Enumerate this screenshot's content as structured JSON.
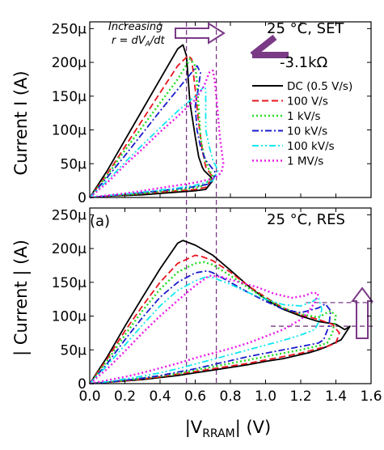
{
  "figure": {
    "panel_label": "(a)",
    "xlabel_pre": "|V",
    "xlabel_sub": "RRAM",
    "xlabel_post": "| (V)",
    "top_ylabel": "Current I (A)",
    "bottom_ylabel": "| Current | (A)",
    "top_condition": "25 °C, SET",
    "bottom_condition": "25 °C, RES",
    "arrow_line1": "Increasing",
    "arrow_line2": "r = dV",
    "arrow_line2_sub": "A",
    "arrow_line2_tail": "/dt",
    "slope_label": "-3.1kΩ"
  },
  "colors": {
    "DC (0.5 V/s)": "#000000",
    "100 V/s": "#e8141e",
    "1 kV/s": "#22dd22",
    "10 kV/s": "#1a1acc",
    "100 kV/s": "#10e8ee",
    "1 MV/s": "#e81ae8",
    "guide": "#7a3a86"
  },
  "chart_data": [
    {
      "type": "line",
      "panel": "top",
      "xlim": [
        0.0,
        1.6
      ],
      "ylim": [
        0,
        260
      ],
      "x_ticks": [
        "0.0",
        "0.2",
        "0.4",
        "0.6",
        "0.8",
        "1.0",
        "1.2",
        "1.4",
        "1.6"
      ],
      "y_ticks": [
        "0",
        "50μ",
        "100μ",
        "150μ",
        "200μ",
        "250μ"
      ],
      "ylabel": "Current I (A)",
      "annotation": "25 °C, SET",
      "series": [
        {
          "name": "DC (0.5 V/s)",
          "style": "solid",
          "x": [
            0.0,
            0.1,
            0.2,
            0.3,
            0.4,
            0.5,
            0.53,
            0.55,
            0.57,
            0.6,
            0.62,
            0.64,
            0.65,
            0.67,
            0.69,
            0.7,
            0.66,
            0.6,
            0.5,
            0.4,
            0.3,
            0.2,
            0.1,
            0.0
          ],
          "y": [
            0,
            40,
            85,
            130,
            175,
            220,
            226,
            210,
            140,
            90,
            60,
            45,
            40,
            35,
            30,
            25,
            12,
            10,
            8,
            6,
            4,
            3,
            2,
            0
          ]
        },
        {
          "name": "100 V/s",
          "style": "dashed",
          "x": [
            0.0,
            0.1,
            0.2,
            0.3,
            0.4,
            0.5,
            0.56,
            0.58,
            0.6,
            0.62,
            0.64,
            0.66,
            0.7,
            0.66,
            0.6,
            0.5,
            0.4,
            0.3,
            0.2,
            0.1,
            0.0
          ],
          "y": [
            0,
            35,
            75,
            115,
            155,
            195,
            210,
            205,
            160,
            110,
            70,
            45,
            30,
            15,
            12,
            10,
            8,
            6,
            4,
            2,
            0
          ]
        },
        {
          "name": "1 kV/s",
          "style": "dotted",
          "x": [
            0.0,
            0.1,
            0.2,
            0.3,
            0.4,
            0.5,
            0.57,
            0.6,
            0.61,
            0.62,
            0.63,
            0.65,
            0.68,
            0.7,
            0.65,
            0.6,
            0.5,
            0.4,
            0.3,
            0.2,
            0.1,
            0.0
          ],
          "y": [
            0,
            33,
            70,
            105,
            140,
            175,
            205,
            195,
            170,
            130,
            90,
            60,
            40,
            32,
            18,
            14,
            11,
            9,
            6,
            4,
            2,
            0
          ]
        },
        {
          "name": "10 kV/s",
          "style": "dashdot",
          "x": [
            0.0,
            0.1,
            0.2,
            0.3,
            0.4,
            0.5,
            0.58,
            0.61,
            0.63,
            0.62,
            0.6,
            0.61,
            0.63,
            0.66,
            0.7,
            0.72,
            0.68,
            0.6,
            0.5,
            0.4,
            0.3,
            0.2,
            0.1,
            0.0
          ],
          "y": [
            0,
            30,
            62,
            95,
            128,
            160,
            185,
            195,
            185,
            165,
            135,
            100,
            75,
            55,
            42,
            35,
            20,
            16,
            13,
            10,
            7,
            5,
            2,
            0
          ]
        },
        {
          "name": "100 kV/s",
          "style": "dashdotdot",
          "x": [
            0.0,
            0.1,
            0.2,
            0.3,
            0.4,
            0.5,
            0.6,
            0.63,
            0.65,
            0.66,
            0.66,
            0.66,
            0.68,
            0.7,
            0.72,
            0.73,
            0.7,
            0.6,
            0.5,
            0.4,
            0.3,
            0.2,
            0.1,
            0.0
          ],
          "y": [
            0,
            25,
            52,
            78,
            103,
            128,
            150,
            158,
            165,
            160,
            135,
            100,
            75,
            55,
            45,
            40,
            25,
            18,
            14,
            11,
            8,
            5,
            3,
            0
          ]
        },
        {
          "name": "1 MV/s",
          "style": "dotted",
          "x": [
            0.0,
            0.1,
            0.2,
            0.3,
            0.4,
            0.5,
            0.6,
            0.65,
            0.68,
            0.7,
            0.71,
            0.72,
            0.73,
            0.74,
            0.75,
            0.76,
            0.75,
            0.73,
            0.7,
            0.65,
            0.6,
            0.5,
            0.4,
            0.3,
            0.2,
            0.1,
            0.0
          ],
          "y": [
            0,
            22,
            48,
            72,
            97,
            120,
            145,
            165,
            185,
            188,
            175,
            150,
            120,
            90,
            70,
            50,
            38,
            32,
            28,
            25,
            22,
            18,
            14,
            10,
            6,
            3,
            0
          ]
        }
      ]
    },
    {
      "type": "line",
      "panel": "bottom",
      "xlim": [
        0.0,
        1.6
      ],
      "ylim": [
        0,
        260
      ],
      "x_ticks": [
        "0.0",
        "0.2",
        "0.4",
        "0.6",
        "0.8",
        "1.0",
        "1.2",
        "1.4",
        "1.6"
      ],
      "y_ticks": [
        "0",
        "50μ",
        "100μ",
        "150μ",
        "200μ",
        "250μ"
      ],
      "ylabel": "| Current | (A)",
      "xlabel": "|VRRAM| (V)",
      "annotation": "25 °C, RES",
      "series": [
        {
          "name": "DC (0.5 V/s)",
          "style": "solid",
          "x": [
            0.0,
            0.1,
            0.2,
            0.3,
            0.4,
            0.5,
            0.53,
            0.6,
            0.7,
            0.8,
            0.9,
            1.0,
            1.1,
            1.2,
            1.3,
            1.4,
            1.45,
            1.48,
            1.43,
            1.35,
            1.3,
            1.25,
            1.2,
            1.1,
            1.0,
            0.9,
            0.8,
            0.7,
            0.6,
            0.5,
            0.4,
            0.3,
            0.2,
            0.1,
            0.0
          ],
          "y": [
            0,
            40,
            85,
            128,
            170,
            208,
            212,
            205,
            190,
            168,
            145,
            125,
            110,
            100,
            92,
            88,
            80,
            85,
            65,
            55,
            50,
            46,
            43,
            37,
            33,
            28,
            24,
            20,
            16,
            12,
            9,
            6,
            4,
            2,
            0
          ]
        },
        {
          "name": "100 V/s",
          "style": "dashed",
          "x": [
            0.0,
            0.1,
            0.2,
            0.3,
            0.4,
            0.5,
            0.6,
            0.64,
            0.7,
            0.8,
            0.9,
            1.0,
            1.1,
            1.2,
            1.3,
            1.38,
            1.42,
            1.4,
            1.35,
            1.3,
            1.2,
            1.1,
            1.0,
            0.9,
            0.8,
            0.7,
            0.6,
            0.5,
            0.4,
            0.3,
            0.2,
            0.1,
            0.0
          ],
          "y": [
            0,
            37,
            78,
            115,
            150,
            178,
            190,
            188,
            182,
            165,
            145,
            128,
            112,
            102,
            95,
            88,
            75,
            60,
            55,
            52,
            45,
            40,
            35,
            30,
            26,
            22,
            18,
            14,
            10,
            7,
            4,
            2,
            0
          ]
        },
        {
          "name": "1 kV/s",
          "style": "dotted",
          "x": [
            0.0,
            0.1,
            0.2,
            0.3,
            0.4,
            0.5,
            0.6,
            0.65,
            0.7,
            0.8,
            0.9,
            1.0,
            1.1,
            1.2,
            1.3,
            1.37,
            1.4,
            1.38,
            1.35,
            1.3,
            1.2,
            1.1,
            1.0,
            0.9,
            0.8,
            0.7,
            0.6,
            0.5,
            0.4,
            0.3,
            0.2,
            0.1,
            0.0
          ],
          "y": [
            0,
            34,
            72,
            108,
            140,
            165,
            178,
            180,
            176,
            160,
            142,
            126,
            112,
            103,
            98,
            108,
            100,
            75,
            60,
            56,
            50,
            45,
            40,
            35,
            30,
            25,
            20,
            15,
            11,
            8,
            5,
            2,
            0
          ]
        },
        {
          "name": "10 kV/s",
          "style": "dashdot",
          "x": [
            0.0,
            0.1,
            0.2,
            0.3,
            0.4,
            0.5,
            0.6,
            0.67,
            0.7,
            0.8,
            0.9,
            1.0,
            1.1,
            1.2,
            1.3,
            1.34,
            1.37,
            1.36,
            1.33,
            1.3,
            1.2,
            1.1,
            1.0,
            0.9,
            0.8,
            0.7,
            0.6,
            0.5,
            0.4,
            0.3,
            0.2,
            0.1,
            0.0
          ],
          "y": [
            0,
            30,
            65,
            98,
            128,
            150,
            164,
            167,
            164,
            150,
            135,
            122,
            110,
            105,
            112,
            118,
            108,
            85,
            65,
            60,
            55,
            50,
            45,
            40,
            34,
            28,
            22,
            17,
            12,
            8,
            5,
            2,
            0
          ]
        },
        {
          "name": "100 kV/s",
          "style": "dashdotdot",
          "x": [
            0.0,
            0.1,
            0.2,
            0.3,
            0.4,
            0.5,
            0.6,
            0.66,
            0.7,
            0.8,
            0.9,
            1.0,
            1.1,
            1.2,
            1.27,
            1.3,
            1.32,
            1.3,
            1.28,
            1.2,
            1.1,
            1.0,
            0.9,
            0.8,
            0.7,
            0.6,
            0.5,
            0.4,
            0.3,
            0.2,
            0.1,
            0.0
          ],
          "y": [
            0,
            27,
            57,
            87,
            115,
            138,
            152,
            158,
            157,
            147,
            135,
            125,
            117,
            115,
            122,
            128,
            110,
            90,
            80,
            72,
            64,
            57,
            50,
            43,
            36,
            29,
            22,
            16,
            11,
            7,
            3,
            0
          ]
        },
        {
          "name": "1 MV/s",
          "style": "dotted",
          "x": [
            0.0,
            0.1,
            0.2,
            0.3,
            0.4,
            0.5,
            0.6,
            0.68,
            0.75,
            0.85,
            0.95,
            1.05,
            1.15,
            1.22,
            1.27,
            1.3,
            1.28,
            1.24,
            1.2,
            1.1,
            1.0,
            0.9,
            0.8,
            0.7,
            0.6,
            0.5,
            0.4,
            0.3,
            0.2,
            0.1,
            0.0
          ],
          "y": [
            0,
            22,
            48,
            75,
            100,
            123,
            145,
            160,
            158,
            150,
            143,
            133,
            127,
            130,
            135,
            133,
            120,
            105,
            95,
            80,
            70,
            60,
            52,
            45,
            38,
            30,
            23,
            16,
            10,
            5,
            0
          ]
        }
      ]
    }
  ]
}
